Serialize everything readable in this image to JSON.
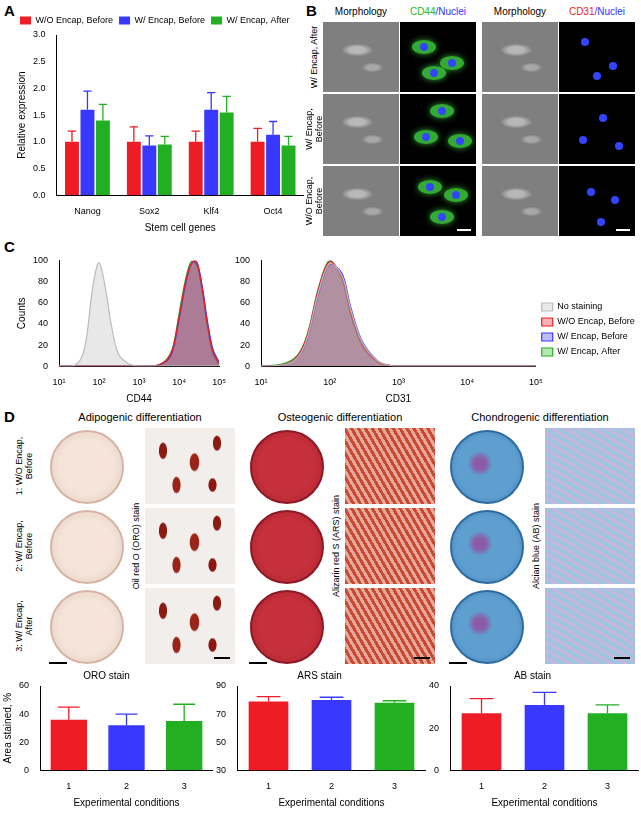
{
  "panel_labels": [
    "A",
    "B",
    "C",
    "D"
  ],
  "chart_data": [
    {
      "type": "bar",
      "categories": [
        "Nanog",
        "Sox2",
        "Klf4",
        "Oct4"
      ],
      "x_label": "Stem cell genes",
      "y_label": "Relative expression",
      "ylim": [
        0,
        3
      ],
      "yticks": [
        {
          "value": 0,
          "label": "0.0"
        },
        0.5,
        {
          "value": 1,
          "label": "1.0"
        },
        1.5,
        {
          "value": 2,
          "label": "2.0"
        },
        2.5,
        {
          "value": 3,
          "label": "3.0"
        }
      ],
      "grid": false,
      "legend": "top-left",
      "series": [
        {
          "name": "W/O Encap, Before",
          "color": "#ee1c24",
          "values": [
            1.0,
            1.0,
            1.0,
            1.0
          ],
          "errors": [
            0.2,
            0.28,
            0.2,
            0.25
          ]
        },
        {
          "name": "W/ Encap, Before",
          "color": "#3838ff",
          "values": [
            1.6,
            0.93,
            1.6,
            1.13
          ],
          "errors": [
            0.35,
            0.18,
            0.32,
            0.25
          ]
        },
        {
          "name": "W/ Encap, After",
          "color": "#22b022",
          "values": [
            1.4,
            0.95,
            1.55,
            0.93
          ],
          "errors": [
            0.3,
            0.15,
            0.3,
            0.17
          ]
        }
      ]
    },
    {
      "type": "area",
      "x_label": "CD44",
      "y_label": "Counts",
      "log": "x",
      "xlim": [
        10,
        100000
      ],
      "xticks": [
        {
          "value": 10,
          "label": "10¹"
        },
        {
          "value": 100,
          "label": "10²"
        },
        {
          "value": 1000,
          "label": "10³"
        },
        {
          "value": 10000,
          "label": "10⁴"
        },
        {
          "value": 100000,
          "label": "10⁵"
        }
      ],
      "ylim": [
        0,
        100
      ],
      "yticks": [
        0,
        20,
        40,
        60,
        80,
        100
      ],
      "grid": false,
      "x": [
        10,
        20,
        30,
        40,
        50,
        70,
        100,
        150,
        200,
        300,
        500,
        700,
        1000,
        2000,
        3000,
        5000,
        7000,
        10000,
        15000,
        20000,
        25000,
        30000,
        40000,
        50000,
        70000,
        100000
      ],
      "series": [
        {
          "color": "#bbbbbb",
          "values": [
            0,
            0,
            3,
            12,
            30,
            75,
            98,
            70,
            40,
            12,
            3,
            1,
            0,
            0,
            0,
            0,
            0,
            0,
            0,
            0,
            0,
            0,
            0,
            0,
            0,
            0
          ]
        },
        {
          "color": "#ee1c24",
          "values": [
            0,
            0,
            0,
            0,
            0,
            0,
            0,
            0,
            0,
            0,
            0,
            0,
            0,
            0,
            1,
            6,
            17,
            47,
            82,
            97,
            100,
            94,
            68,
            42,
            14,
            3
          ]
        },
        {
          "color": "#3838ff",
          "values": [
            0,
            0,
            0,
            0,
            0,
            0,
            0,
            0,
            0,
            0,
            0,
            0,
            0,
            0,
            1,
            5,
            15,
            44,
            80,
            96,
            99,
            95,
            70,
            45,
            16,
            4
          ]
        },
        {
          "color": "#22b022",
          "values": [
            0,
            0,
            0,
            0,
            0,
            0,
            0,
            0,
            0,
            0,
            0,
            0,
            0,
            0,
            1,
            7,
            18,
            50,
            85,
            99,
            98,
            92,
            65,
            40,
            12,
            2
          ]
        }
      ]
    },
    {
      "type": "area",
      "x_label": "CD31",
      "log": "x",
      "legend": "right",
      "xlim": [
        10,
        100000
      ],
      "xticks": [
        {
          "value": 10,
          "label": "10¹"
        },
        {
          "value": 100,
          "label": "10²"
        },
        {
          "value": 1000,
          "label": "10³"
        },
        {
          "value": 10000,
          "label": "10⁴"
        },
        {
          "value": 100000,
          "label": "10⁵"
        }
      ],
      "ylim": [
        0,
        100
      ],
      "yticks": [
        0,
        20,
        40,
        60,
        80,
        100
      ],
      "grid": false,
      "x": [
        10,
        20,
        30,
        40,
        50,
        70,
        100,
        150,
        200,
        300,
        500,
        700,
        1000,
        2000,
        3000,
        5000,
        7000,
        10000,
        15000,
        20000,
        25000,
        30000,
        40000,
        50000,
        70000,
        100000
      ],
      "series": [
        {
          "name": "No staining",
          "color": "#bbbbbb",
          "values": [
            0,
            1,
            5,
            15,
            33,
            72,
            97,
            86,
            55,
            22,
            5,
            1,
            0,
            0,
            0,
            0,
            0,
            0,
            0,
            0,
            0,
            0,
            0,
            0,
            0,
            0
          ]
        },
        {
          "name": "W/O Encap, Before",
          "color": "#ee1c24",
          "values": [
            0,
            1,
            6,
            17,
            35,
            75,
            99,
            84,
            52,
            20,
            4,
            1,
            0,
            0,
            0,
            0,
            0,
            0,
            0,
            0,
            0,
            0,
            0,
            0,
            0,
            0
          ]
        },
        {
          "name": "W/ Encap, Before",
          "color": "#3838ff",
          "values": [
            0,
            1,
            5,
            14,
            31,
            70,
            96,
            88,
            57,
            23,
            5,
            1,
            0,
            0,
            0,
            0,
            0,
            0,
            0,
            0,
            0,
            0,
            0,
            0,
            0,
            0
          ]
        },
        {
          "name": "W/ Encap, After",
          "color": "#22b022",
          "values": [
            0,
            2,
            7,
            18,
            36,
            76,
            100,
            83,
            50,
            19,
            4,
            1,
            0,
            0,
            0,
            0,
            0,
            0,
            0,
            0,
            0,
            0,
            0,
            0,
            0,
            0
          ]
        }
      ]
    },
    {
      "type": "bar",
      "title": "ORO stain",
      "categories": [
        "1",
        "2",
        "3"
      ],
      "x_label": "Experimental conditions",
      "y_label": "Area stained, %",
      "ylim": [
        0,
        60
      ],
      "yticks": [
        0,
        20,
        40,
        60
      ],
      "grid": false,
      "colors": [
        "#ee1c24",
        "#3838ff",
        "#22b022"
      ],
      "values": [
        36,
        32,
        35
      ],
      "errors": [
        9,
        8,
        12
      ]
    },
    {
      "type": "bar",
      "title": "ARS stain",
      "categories": [
        "1",
        "2",
        "3"
      ],
      "x_label": "Experimental conditions",
      "ylim": [
        30,
        90
      ],
      "yticks": [
        30,
        50,
        70,
        90
      ],
      "grid": false,
      "colors": [
        "#ee1c24",
        "#3838ff",
        "#22b022"
      ],
      "values": [
        79,
        80,
        78
      ],
      "errors": [
        3.5,
        2,
        1.5
      ]
    },
    {
      "type": "bar",
      "title": "AB stain",
      "categories": [
        "1",
        "2",
        "3"
      ],
      "x_label": "Experimental conditions",
      "ylim": [
        0,
        40
      ],
      "yticks": [
        0,
        20,
        40
      ],
      "grid": false,
      "colors": [
        "#ee1c24",
        "#3838ff",
        "#22b022"
      ],
      "values": [
        27,
        31,
        27
      ],
      "errors": [
        7,
        6,
        4
      ]
    }
  ],
  "panel_b": {
    "rows": [
      "W/ Encap, After",
      "W/ Encap, Before",
      "W/O Encap, Before"
    ],
    "columns": [
      [
        "Morphology"
      ],
      [
        "CD44",
        "/Nuclei"
      ],
      [
        "Morphology"
      ],
      [
        "CD31",
        "/Nuclei"
      ]
    ]
  },
  "panel_d": {
    "rows": [
      "1: W/O Encap, Before",
      "2: W/ Encap, Before",
      "3: W/ Encap, After"
    ],
    "columns": [
      {
        "title": "Adipogenic differentiation",
        "stain": "Oil red O (ORO) stain"
      },
      {
        "title": "Osteogenic differentiation",
        "stain": "Alizarin red S (ARS) stain"
      },
      {
        "title": "Chondrogenic differentiation",
        "stain": "Alcian blue (AB) stain"
      }
    ]
  }
}
